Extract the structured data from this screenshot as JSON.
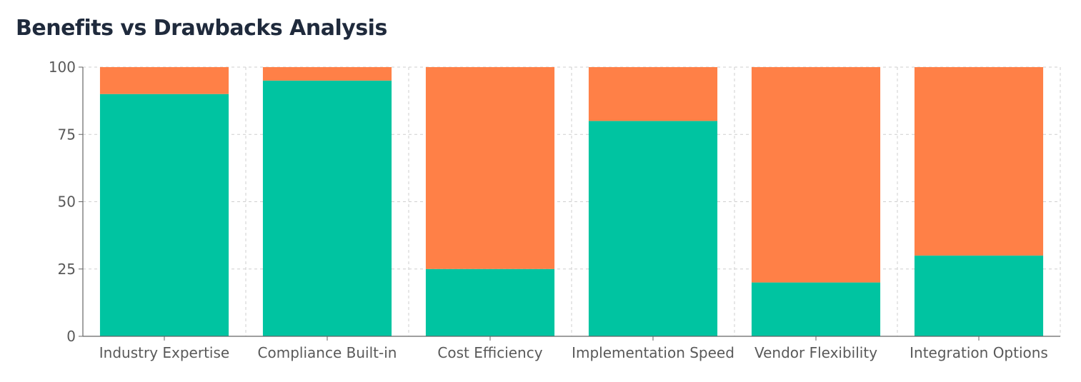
{
  "title": "Benefits vs Drawbacks Analysis",
  "chart_data": {
    "type": "bar",
    "stacked": true,
    "categories": [
      "Industry Expertise",
      "Compliance Built-in",
      "Cost Efficiency",
      "Implementation Speed",
      "Vendor Flexibility",
      "Integration Options"
    ],
    "series": [
      {
        "color": "#00c4a1",
        "values": [
          90,
          95,
          25,
          80,
          20,
          30
        ]
      },
      {
        "color": "#ff8047",
        "values": [
          10,
          5,
          75,
          20,
          80,
          70
        ]
      }
    ],
    "ylim": [
      0,
      100
    ],
    "yticks": [
      "0",
      "25",
      "50",
      "75",
      "100"
    ],
    "grid": true,
    "legend": "none"
  }
}
